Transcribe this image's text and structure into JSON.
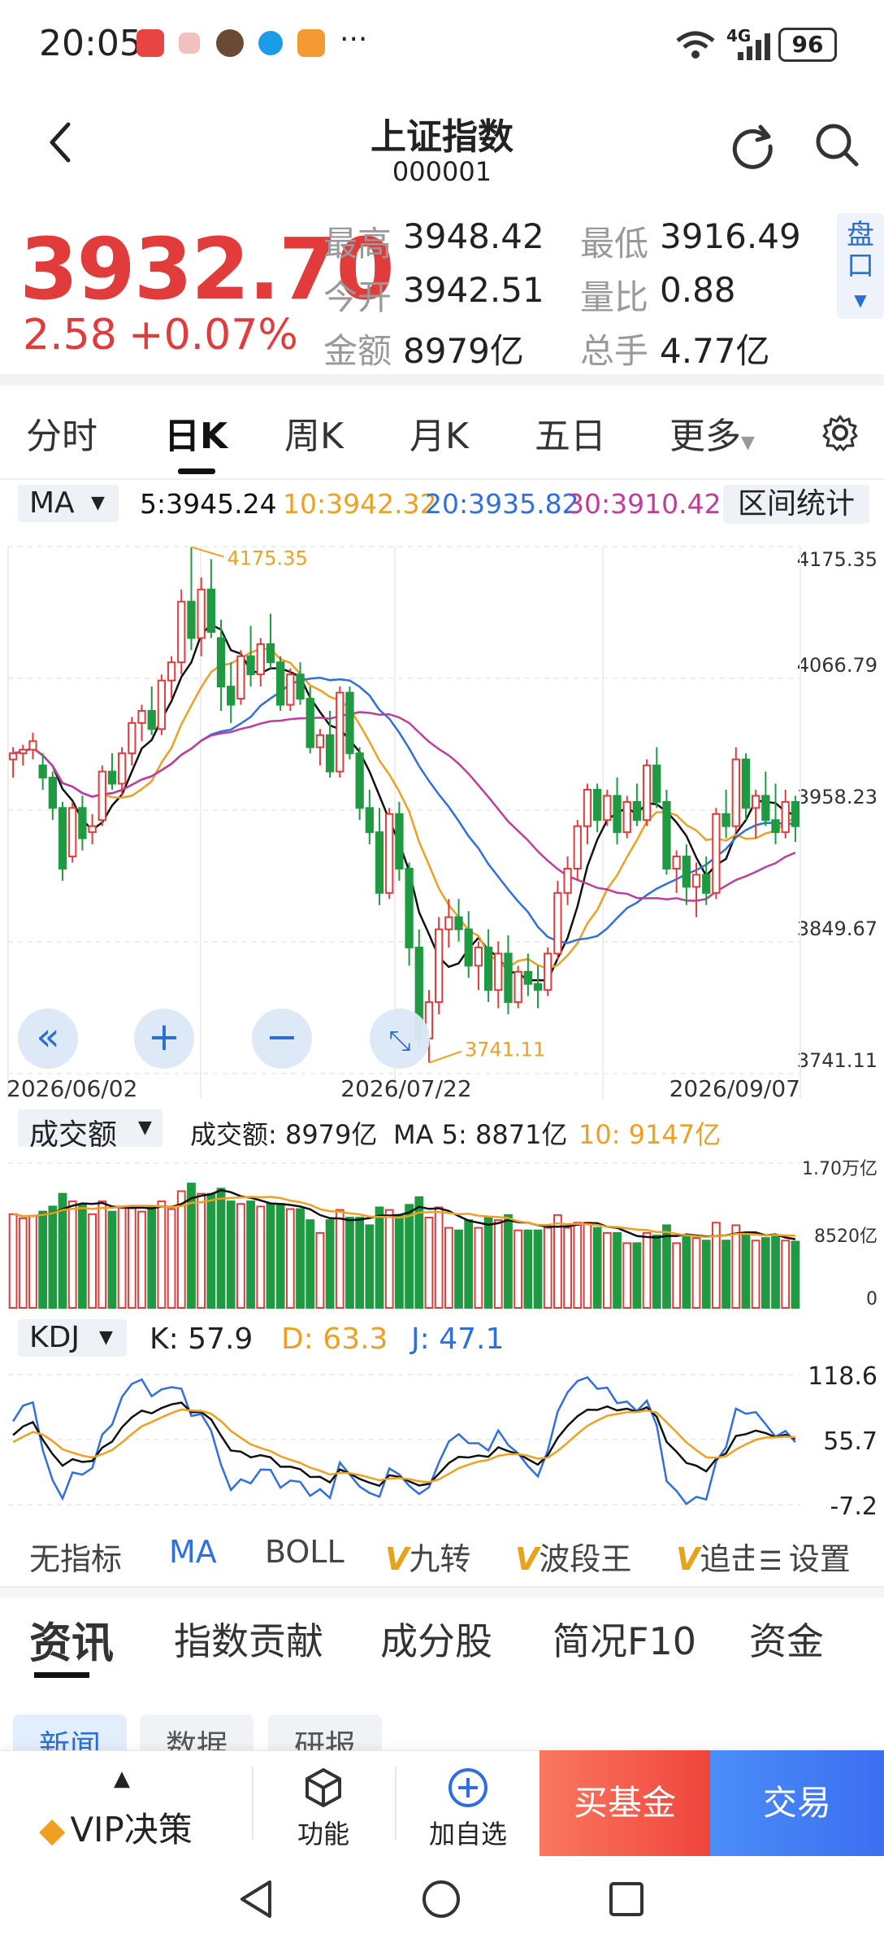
{
  "status_bar": {
    "time": "20:05",
    "network": "4G",
    "battery": "96"
  },
  "header": {
    "title": "上证指数",
    "code": "000001"
  },
  "quote": {
    "price": "3932.70",
    "change": "2.58",
    "change_pct": "+0.07%",
    "stats": [
      {
        "label": "最高",
        "value": "3948.42"
      },
      {
        "label": "最低",
        "value": "3916.49"
      },
      {
        "label": "今开",
        "value": "3942.51"
      },
      {
        "label": "量比",
        "value": "0.88"
      },
      {
        "label": "金额",
        "value": "8979亿"
      },
      {
        "label": "总手",
        "value": "4.77亿"
      }
    ],
    "pankou": "盘口"
  },
  "chart_tabs": [
    "分时",
    "日K",
    "周K",
    "月K",
    "五日",
    "更多"
  ],
  "ma_bar": {
    "selector": "MA",
    "ma5": "5:3945.24",
    "ma10": "10:3942.32",
    "ma20": "20:3935.82",
    "ma30": "30:3910.42",
    "range_stats": "区间统计"
  },
  "colors": {
    "up": "#e23b3b",
    "down": "#1f9a43",
    "ma5": "#111111",
    "ma10": "#f0a020",
    "ma20": "#2f6fe0",
    "ma30": "#c23c9c"
  },
  "chart_data": [
    {
      "type": "candlestick",
      "y_ticks": [
        "4175.35",
        "4066.79",
        "3958.23",
        "3849.67",
        "3741.11"
      ],
      "ylim": [
        3741.11,
        4175.35
      ],
      "x_labels": [
        "2026/06/02",
        "2026/07/22",
        "2026/09/07"
      ],
      "annotations": {
        "high": "4175.35",
        "low": "3741.11"
      },
      "candles": [
        [
          4000,
          4010,
          3985,
          4005
        ],
        [
          4005,
          4012,
          3995,
          4008
        ],
        [
          4008,
          4022,
          4000,
          4015
        ],
        [
          3995,
          4005,
          3975,
          3985
        ],
        [
          3985,
          3990,
          3950,
          3960
        ],
        [
          3960,
          3965,
          3900,
          3910
        ],
        [
          3920,
          3965,
          3915,
          3960
        ],
        [
          3960,
          3970,
          3925,
          3935
        ],
        [
          3940,
          3955,
          3930,
          3945
        ],
        [
          3950,
          3995,
          3945,
          3990
        ],
        [
          3990,
          4005,
          3975,
          3980
        ],
        [
          3980,
          4010,
          3970,
          4005
        ],
        [
          4005,
          4035,
          3995,
          4030
        ],
        [
          4030,
          4045,
          4015,
          4040
        ],
        [
          4040,
          4060,
          4020,
          4025
        ],
        [
          4025,
          4070,
          4020,
          4065
        ],
        [
          4065,
          4085,
          4050,
          4080
        ],
        [
          4080,
          4140,
          4070,
          4130
        ],
        [
          4130,
          4175,
          4090,
          4100
        ],
        [
          4100,
          4150,
          4085,
          4140
        ],
        [
          4140,
          4165,
          4100,
          4105
        ],
        [
          4100,
          4115,
          4040,
          4060
        ],
        [
          4060,
          4080,
          4030,
          4045
        ],
        [
          4050,
          4090,
          4045,
          4085
        ],
        [
          4085,
          4110,
          4060,
          4070
        ],
        [
          4070,
          4100,
          4060,
          4095
        ],
        [
          4095,
          4120,
          4075,
          4080
        ],
        [
          4080,
          4085,
          4040,
          4045
        ],
        [
          4045,
          4075,
          4040,
          4070
        ],
        [
          4070,
          4080,
          4045,
          4050
        ],
        [
          4050,
          4060,
          4005,
          4010
        ],
        [
          4010,
          4025,
          3995,
          4020
        ],
        [
          4020,
          4040,
          3985,
          3990
        ],
        [
          3990,
          4060,
          3985,
          4055
        ],
        [
          4055,
          4060,
          4000,
          4005
        ],
        [
          4005,
          4010,
          3950,
          3960
        ],
        [
          3960,
          3975,
          3930,
          3940
        ],
        [
          3940,
          3960,
          3880,
          3890
        ],
        [
          3890,
          3960,
          3885,
          3955
        ],
        [
          3955,
          3965,
          3900,
          3910
        ],
        [
          3910,
          3915,
          3830,
          3845
        ],
        [
          3845,
          3860,
          3760,
          3770
        ],
        [
          3770,
          3810,
          3750,
          3800
        ],
        [
          3800,
          3870,
          3790,
          3860
        ],
        [
          3860,
          3885,
          3845,
          3870
        ],
        [
          3870,
          3885,
          3850,
          3860
        ],
        [
          3860,
          3875,
          3820,
          3830
        ],
        [
          3830,
          3850,
          3810,
          3845
        ],
        [
          3845,
          3860,
          3800,
          3810
        ],
        [
          3810,
          3850,
          3795,
          3840
        ],
        [
          3840,
          3855,
          3790,
          3800
        ],
        [
          3800,
          3830,
          3795,
          3825
        ],
        [
          3825,
          3840,
          3805,
          3815
        ],
        [
          3815,
          3830,
          3795,
          3810
        ],
        [
          3810,
          3845,
          3805,
          3840
        ],
        [
          3840,
          3900,
          3835,
          3890
        ],
        [
          3890,
          3920,
          3880,
          3910
        ],
        [
          3910,
          3950,
          3900,
          3945
        ],
        [
          3945,
          3980,
          3930,
          3975
        ],
        [
          3975,
          3980,
          3940,
          3950
        ],
        [
          3950,
          3975,
          3945,
          3970
        ],
        [
          3970,
          3985,
          3930,
          3940
        ],
        [
          3940,
          3970,
          3935,
          3965
        ],
        [
          3965,
          3980,
          3945,
          3950
        ],
        [
          3950,
          4000,
          3945,
          3995
        ],
        [
          3995,
          4010,
          3960,
          3965
        ],
        [
          3965,
          3975,
          3905,
          3910
        ],
        [
          3910,
          3925,
          3890,
          3920
        ],
        [
          3920,
          3930,
          3880,
          3895
        ],
        [
          3895,
          3915,
          3870,
          3905
        ],
        [
          3905,
          3920,
          3880,
          3890
        ],
        [
          3890,
          3960,
          3885,
          3955
        ],
        [
          3955,
          3975,
          3935,
          3945
        ],
        [
          3945,
          4010,
          3940,
          4000
        ],
        [
          4000,
          4005,
          3950,
          3960
        ],
        [
          3960,
          3975,
          3935,
          3970
        ],
        [
          3970,
          3990,
          3945,
          3950
        ],
        [
          3950,
          3980,
          3930,
          3940
        ],
        [
          3940,
          3975,
          3935,
          3965
        ],
        [
          3965,
          3970,
          3932,
          3945
        ]
      ]
    },
    {
      "type": "bar",
      "label": "成交额",
      "readout": {
        "label": "成交额: 8979亿",
        "ma5": "MA 5: 8871亿",
        "ma10": "10: 9147亿"
      },
      "y_ticks": [
        "1.70万亿",
        "8520亿",
        "0"
      ],
      "ylim": [
        0,
        17000
      ]
    },
    {
      "type": "line",
      "label": "KDJ",
      "readout": {
        "k": "K: 57.9",
        "d": "D: 63.3",
        "j": "J: 47.1"
      },
      "y_ticks": [
        "118.6",
        "55.7",
        "-7.2"
      ],
      "ylim": [
        -7.2,
        118.6
      ]
    }
  ],
  "indicator_tabs": [
    "无指标",
    "MA",
    "BOLL",
    "九转",
    "波段王",
    "追击",
    "设置"
  ],
  "section_tabs": [
    "资讯",
    "指数贡献",
    "成分股",
    "简况F10",
    "资金"
  ],
  "sub_tabs": [
    "新闻",
    "数据",
    "研报"
  ],
  "bottom_bar": {
    "vip": "VIP决策",
    "func": "功能",
    "add": "加自选",
    "buy_fund": "买基金",
    "trade": "交易"
  }
}
